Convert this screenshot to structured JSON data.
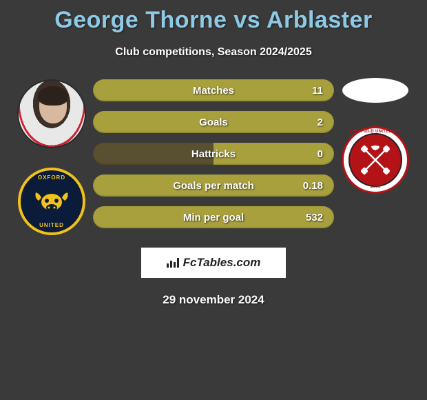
{
  "title": "George Thorne vs Arblaster",
  "subtitle": "Club competitions, Season 2024/2025",
  "date": "29 november 2024",
  "brand": "FcTables.com",
  "colors": {
    "title": "#8ecae6",
    "pill_full": "#a8a03c",
    "pill_dark": "#585030",
    "background": "#3a3a3a",
    "badge_left_bg": "#0b1b3a",
    "badge_left_accent": "#f2c21a",
    "badge_right_bg": "#ffffff",
    "badge_right_accent": "#b31217"
  },
  "left_badge": {
    "top_text": "OXFORD",
    "bottom_text": "UNITED"
  },
  "right_badge": {
    "top_text": "SHEFFIELD UNITED F.C.",
    "year": "1889"
  },
  "stats": [
    {
      "label": "Matches",
      "value": "11",
      "split": false
    },
    {
      "label": "Goals",
      "value": "2",
      "split": false
    },
    {
      "label": "Hattricks",
      "value": "0",
      "split": true
    },
    {
      "label": "Goals per match",
      "value": "0.18",
      "split": false
    },
    {
      "label": "Min per goal",
      "value": "532",
      "split": false
    }
  ]
}
